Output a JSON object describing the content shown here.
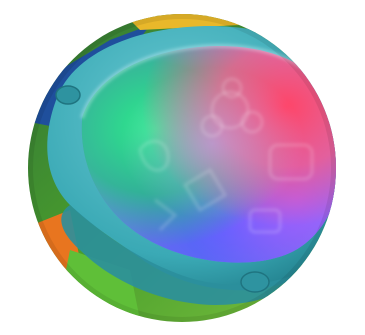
{
  "image": {
    "subject": "toy-light-up-dome",
    "crop": "circle",
    "background": "#ffffff"
  },
  "colors": {
    "shell_teal": "#3aa9b5",
    "shell_teal_dark": "#1f7f8c",
    "shell_teal_light": "#6cc9d2",
    "glow_green": "#27d97a",
    "glow_red": "#ff4a6a",
    "glow_blue": "#4f6dff",
    "glow_violet": "#a25bff",
    "toy_green": "#5dbb3a",
    "toy_orange": "#f07a1e",
    "toy_yellow": "#f2c230",
    "toy_blue": "#1e55c8"
  }
}
